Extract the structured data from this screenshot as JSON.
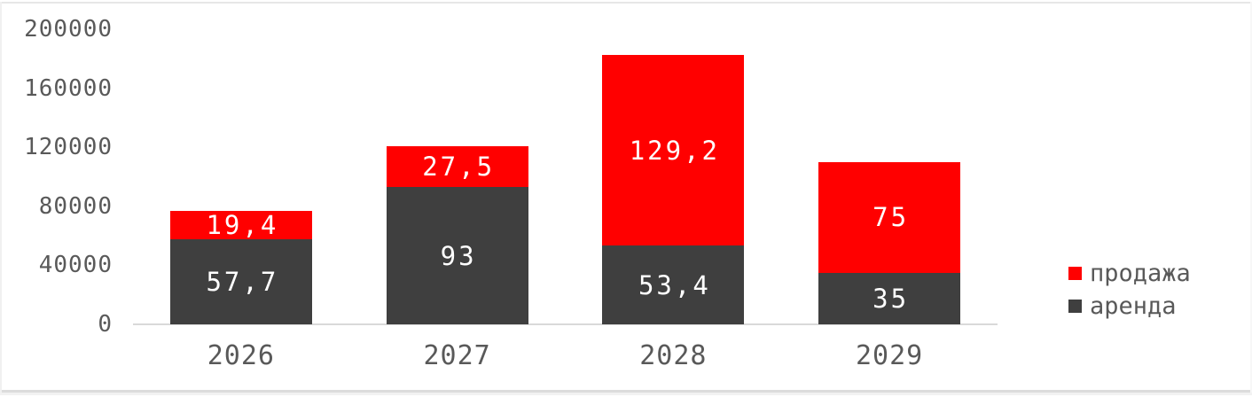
{
  "chart_data": {
    "type": "bar",
    "stacked": true,
    "title": "",
    "xlabel": "",
    "ylabel": "",
    "categories": [
      "2026",
      "2027",
      "2028",
      "2029"
    ],
    "series": [
      {
        "name": "аренда",
        "color": "#3f3f3f",
        "values": [
          57700,
          93000,
          53400,
          35000
        ],
        "data_labels": [
          "57,7",
          "93",
          "53,4",
          "35"
        ],
        "label_color": "#ffffff"
      },
      {
        "name": "продажа",
        "color": "#ff0000",
        "values": [
          19400,
          27500,
          129200,
          75000
        ],
        "data_labels": [
          "19,4",
          "27,5",
          "129,2",
          "75"
        ],
        "label_color": "#ffffff"
      }
    ],
    "ylim": [
      0,
      200000
    ],
    "yticks": [
      0,
      40000,
      80000,
      120000,
      160000,
      200000
    ],
    "ytick_labels": [
      "0",
      "40000",
      "80000",
      "120000",
      "160000",
      "200000"
    ],
    "grid": false,
    "legend_position": "right",
    "legend": [
      {
        "label": "продажа",
        "color": "#ff0000"
      },
      {
        "label": "аренда",
        "color": "#3f3f3f"
      }
    ],
    "axis_text_color": "#595959",
    "axis_line_color": "#d9d9d9"
  }
}
